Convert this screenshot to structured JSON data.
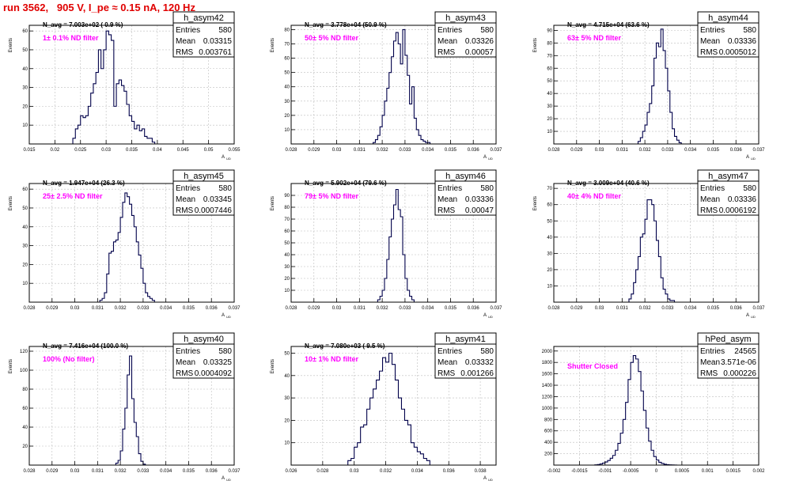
{
  "run_title": "run 3562,   905 V, I_pe ≈ 0.15 nA, 120 Hz",
  "stats_labels": {
    "entries": "Entries",
    "mean": "Mean",
    "rms": "RMS"
  },
  "colors": {
    "hist": "#00004a",
    "grid": "#bdbdbd",
    "annot": "#ff00ff",
    "title": "#e00000"
  },
  "chart_data": [
    {
      "type": "bar",
      "name": "h_asym42",
      "ylabel": "Events",
      "xlabel": "A_UD",
      "xlim": [
        0.015,
        0.055
      ],
      "ylim": [
        0,
        63
      ],
      "xticks": [
        0.015,
        0.02,
        0.025,
        0.03,
        0.035,
        0.04,
        0.045,
        0.05,
        0.055
      ],
      "xtick_labels": [
        "0.015",
        "0.02",
        "0.025",
        "0.03",
        "0.035",
        "0.04",
        "0.045",
        "0.05",
        "0.055"
      ],
      "yticks": [
        10,
        20,
        30,
        40,
        50,
        60
      ],
      "nbar": "N_avg = 7.003e+02 ( 0.9 %)",
      "filter": "1± 0.1% ND filter",
      "entries": "580",
      "mean": "0.03315",
      "rms": "0.003761",
      "x_start": 0.0235,
      "bin_width": 0.0005,
      "values": [
        3,
        8,
        10,
        15,
        14,
        15,
        20,
        27,
        32,
        38,
        50,
        40,
        50,
        60,
        58,
        55,
        20,
        32,
        34,
        31,
        28,
        21,
        15,
        12,
        8,
        10,
        7,
        8,
        4,
        3,
        3,
        1
      ]
    },
    {
      "type": "bar",
      "name": "h_asym43",
      "ylabel": "Events",
      "xlabel": "A_UD",
      "xlim": [
        0.028,
        0.037
      ],
      "ylim": [
        0,
        83
      ],
      "xticks": [
        0.028,
        0.029,
        0.03,
        0.031,
        0.032,
        0.033,
        0.034,
        0.035,
        0.036,
        0.037
      ],
      "xtick_labels": [
        "0.028",
        "0.029",
        "0.03",
        "0.031",
        "0.032",
        "0.033",
        "0.034",
        "0.035",
        "0.036",
        "0.037"
      ],
      "yticks": [
        10,
        20,
        30,
        40,
        50,
        60,
        70,
        80
      ],
      "nbar": "N_avg = 3.778e+04 (50.9 %)",
      "filter": "50± 5% ND filter",
      "entries": "580",
      "mean": "0.03326",
      "rms": "0.00057",
      "x_start": 0.0316,
      "bin_width": 0.0001,
      "values": [
        1,
        3,
        6,
        12,
        20,
        30,
        39,
        50,
        61,
        72,
        78,
        70,
        56,
        80,
        62,
        48,
        28,
        40,
        18,
        10,
        6,
        3,
        2,
        1,
        1
      ]
    },
    {
      "type": "bar",
      "name": "h_asym44",
      "ylabel": "Events",
      "xlabel": "A_UD",
      "xlim": [
        0.028,
        0.037
      ],
      "ylim": [
        0,
        94
      ],
      "xticks": [
        0.028,
        0.029,
        0.03,
        0.031,
        0.032,
        0.033,
        0.034,
        0.035,
        0.036,
        0.037
      ],
      "xtick_labels": [
        "0.028",
        "0.029",
        "0.03",
        "0.031",
        "0.032",
        "0.033",
        "0.034",
        "0.035",
        "0.036",
        "0.037"
      ],
      "yticks": [
        10,
        20,
        30,
        40,
        50,
        60,
        70,
        80,
        90
      ],
      "nbar": "N_avg = 4.715e+04 (63.6 %)",
      "filter": "63± 5% ND filter",
      "entries": "580",
      "mean": "0.03336",
      "rms": "0.0005012",
      "x_start": 0.0317,
      "bin_width": 0.0001,
      "values": [
        2,
        5,
        10,
        15,
        25,
        32,
        46,
        68,
        80,
        77,
        91,
        74,
        60,
        42,
        25,
        12,
        6,
        3,
        1
      ]
    },
    {
      "type": "bar",
      "name": "h_asym45",
      "ylabel": "Events",
      "xlabel": "A_UD",
      "xlim": [
        0.028,
        0.037
      ],
      "ylim": [
        0,
        63
      ],
      "xticks": [
        0.028,
        0.029,
        0.03,
        0.031,
        0.032,
        0.033,
        0.034,
        0.035,
        0.036,
        0.037
      ],
      "xtick_labels": [
        "0.028",
        "0.029",
        "0.03",
        "0.031",
        "0.032",
        "0.033",
        "0.034",
        "0.035",
        "0.036",
        "0.037"
      ],
      "yticks": [
        10,
        20,
        30,
        40,
        50,
        60
      ],
      "nbar": "N_avg = 1.947e+04 (26.3 %)",
      "filter": "25± 2.5% ND filter",
      "entries": "580",
      "mean": "0.03345",
      "rms": "0.0007446",
      "x_start": 0.0311,
      "bin_width": 0.0001,
      "values": [
        1,
        2,
        5,
        15,
        26,
        27,
        32,
        33,
        37,
        45,
        53,
        58,
        56,
        52,
        46,
        40,
        32,
        25,
        18,
        10,
        5,
        3,
        2,
        1
      ]
    },
    {
      "type": "bar",
      "name": "h_asym46",
      "ylabel": "Events",
      "xlabel": "A_UD",
      "xlim": [
        0.028,
        0.037
      ],
      "ylim": [
        0,
        100
      ],
      "xticks": [
        0.028,
        0.029,
        0.03,
        0.031,
        0.032,
        0.033,
        0.034,
        0.035,
        0.036,
        0.037
      ],
      "xtick_labels": [
        "0.028",
        "0.029",
        "0.03",
        "0.031",
        "0.032",
        "0.033",
        "0.034",
        "0.035",
        "0.036",
        "0.037"
      ],
      "yticks": [
        10,
        20,
        30,
        40,
        50,
        60,
        70,
        80,
        90
      ],
      "nbar": "N_avg = 5.902e+04 (79.6 %)",
      "filter": "79± 5% ND filter",
      "entries": "580",
      "mean": "0.03336",
      "rms": "0.00047",
      "x_start": 0.0318,
      "bin_width": 0.0001,
      "values": [
        2,
        5,
        10,
        20,
        36,
        55,
        70,
        82,
        95,
        78,
        72,
        40,
        20,
        10,
        5,
        2
      ]
    },
    {
      "type": "bar",
      "name": "h_asym47",
      "ylabel": "Events",
      "xlabel": "A_UD",
      "xlim": [
        0.028,
        0.037
      ],
      "ylim": [
        0,
        73
      ],
      "xticks": [
        0.028,
        0.029,
        0.03,
        0.031,
        0.032,
        0.033,
        0.034,
        0.035,
        0.036,
        0.037
      ],
      "xtick_labels": [
        "0.028",
        "0.029",
        "0.03",
        "0.031",
        "0.032",
        "0.033",
        "0.034",
        "0.035",
        "0.036",
        "0.037"
      ],
      "yticks": [
        10,
        20,
        30,
        40,
        50,
        60,
        70
      ],
      "nbar": "N_avg = 3.009e+04 (40.6 %)",
      "filter": "40± 4% ND filter",
      "entries": "580",
      "mean": "0.03336",
      "rms": "0.0006192",
      "x_start": 0.0313,
      "bin_width": 0.0001,
      "values": [
        2,
        5,
        12,
        20,
        28,
        40,
        42,
        51,
        63,
        63,
        60,
        50,
        38,
        28,
        15,
        8,
        5,
        2,
        1,
        1
      ]
    },
    {
      "type": "bar",
      "name": "h_asym40",
      "ylabel": "Events",
      "xlabel": "A_UD",
      "xlim": [
        0.028,
        0.037
      ],
      "ylim": [
        0,
        125
      ],
      "xticks": [
        0.028,
        0.029,
        0.03,
        0.031,
        0.032,
        0.033,
        0.034,
        0.035,
        0.036,
        0.037
      ],
      "xtick_labels": [
        "0.028",
        "0.029",
        "0.03",
        "0.031",
        "0.032",
        "0.033",
        "0.034",
        "0.035",
        "0.036",
        "0.037"
      ],
      "yticks": [
        20,
        40,
        60,
        80,
        100,
        120
      ],
      "nbar": "N_avg = 7.416e+04 (100.0 %)",
      "filter": "100% (No filter)",
      "entries": "580",
      "mean": "0.03325",
      "rms": "0.0004092",
      "x_start": 0.0318,
      "bin_width": 0.0001,
      "values": [
        2,
        5,
        15,
        38,
        60,
        95,
        115,
        70,
        45,
        30,
        12,
        4,
        1
      ]
    },
    {
      "type": "bar",
      "name": "h_asym41",
      "ylabel": "Events",
      "xlabel": "A_UD",
      "xlim": [
        0.026,
        0.039
      ],
      "ylim": [
        0,
        53
      ],
      "xticks": [
        0.026,
        0.028,
        0.03,
        0.032,
        0.034,
        0.036,
        0.038
      ],
      "xtick_labels": [
        "0.026",
        "0.028",
        "0.03",
        "0.032",
        "0.034",
        "0.036",
        "0.038"
      ],
      "yticks": [
        10,
        20,
        30,
        40,
        50
      ],
      "nbar": "N_avg = 7.080e+03 ( 9.5 %)",
      "filter": "10± 1% ND filter",
      "entries": "580",
      "mean": "0.03332",
      "rms": "0.001266",
      "x_start": 0.0296,
      "bin_width": 0.0002,
      "values": [
        2,
        3,
        8,
        10,
        17,
        18,
        25,
        30,
        34,
        38,
        42,
        48,
        46,
        50,
        45,
        38,
        30,
        25,
        20,
        18,
        10,
        8,
        6,
        5,
        3,
        2
      ]
    },
    {
      "type": "bar",
      "name": "hPed_asym",
      "ylabel": "",
      "xlabel": "",
      "xlim": [
        -0.002,
        0.002
      ],
      "ylim": [
        0,
        2080
      ],
      "xticks": [
        -0.002,
        -0.0015,
        -0.001,
        -0.0005,
        0,
        0.0005,
        0.001,
        0.0015,
        0.002
      ],
      "xtick_labels": [
        "-0.002",
        "-0.0015",
        "-0.001",
        "-0.0005",
        "0",
        "0.0005",
        "0.001",
        "0.0015",
        "0.002"
      ],
      "yticks": [
        200,
        400,
        600,
        800,
        1000,
        1200,
        1400,
        1600,
        1800,
        2000
      ],
      "nbar": "",
      "filter": "Shutter Closed",
      "entries": "24565",
      "mean": "3.571e-06",
      "rms": "0.000226",
      "x_start": -0.0012,
      "bin_width": 5e-05,
      "values": [
        5,
        10,
        20,
        35,
        55,
        80,
        120,
        170,
        260,
        380,
        560,
        800,
        1100,
        1500,
        1800,
        1920,
        1860,
        1640,
        1300,
        960,
        650,
        420,
        260,
        150,
        90,
        50,
        28,
        15,
        8,
        4,
        2,
        1
      ]
    }
  ]
}
